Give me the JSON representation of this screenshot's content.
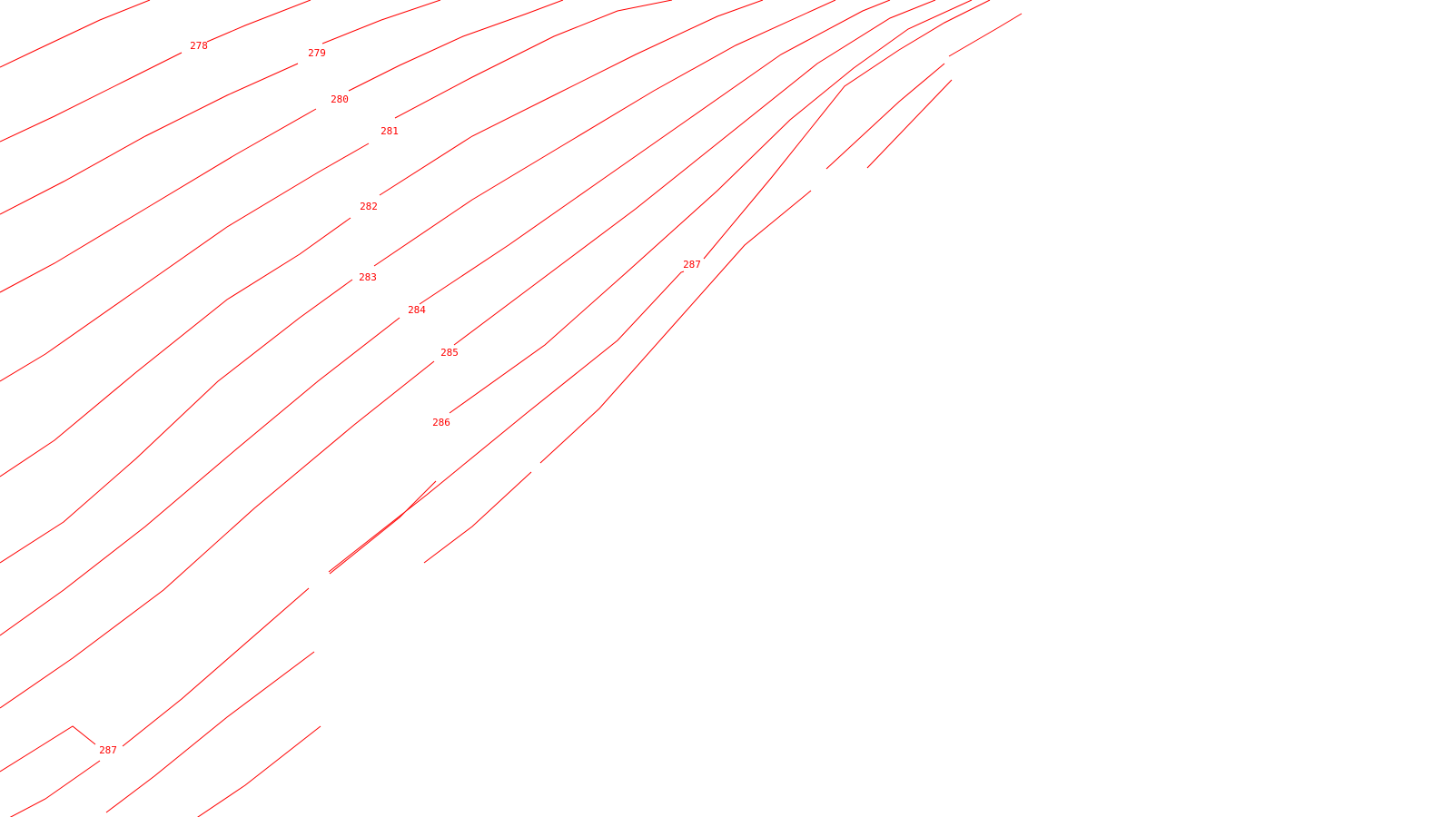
{
  "map": {
    "line_color": "#ff0000",
    "background_color": "#ffffff",
    "contour_labels": [
      "278",
      "279",
      "280",
      "281",
      "282",
      "283",
      "284",
      "285",
      "286",
      "287",
      "287"
    ]
  }
}
